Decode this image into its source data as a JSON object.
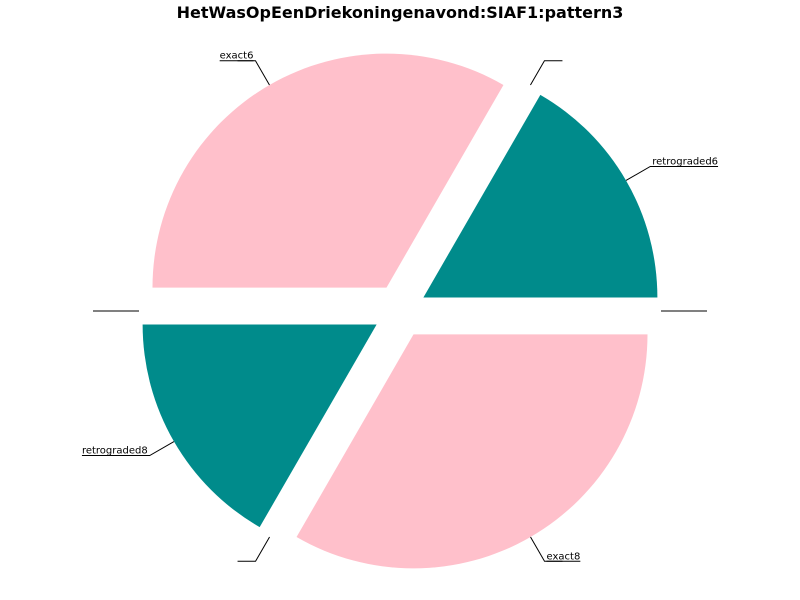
{
  "chart_data": {
    "type": "pie",
    "title": "HetWasOpEenDriekoningenavond:SIAF1:pattern3",
    "slices": [
      {
        "label": "exact6",
        "value": 33.33,
        "color": "#ffc0cb"
      },
      {
        "label": "",
        "value": 0.0,
        "color": "#ffffff"
      },
      {
        "label": "retrograded6",
        "value": 16.67,
        "color": "#008b8b"
      },
      {
        "label": "",
        "value": 0.0,
        "color": "#ffffff"
      },
      {
        "label": "exact8",
        "value": 33.33,
        "color": "#ffc0cb"
      },
      {
        "label": "",
        "value": 0.0,
        "color": "#ffffff"
      },
      {
        "label": "retrograded8",
        "value": 16.67,
        "color": "#008b8b"
      },
      {
        "label": "",
        "value": 0.0,
        "color": "#ffffff"
      }
    ],
    "start_angle_deg": 180,
    "direction": "clockwise",
    "exploded": true
  }
}
